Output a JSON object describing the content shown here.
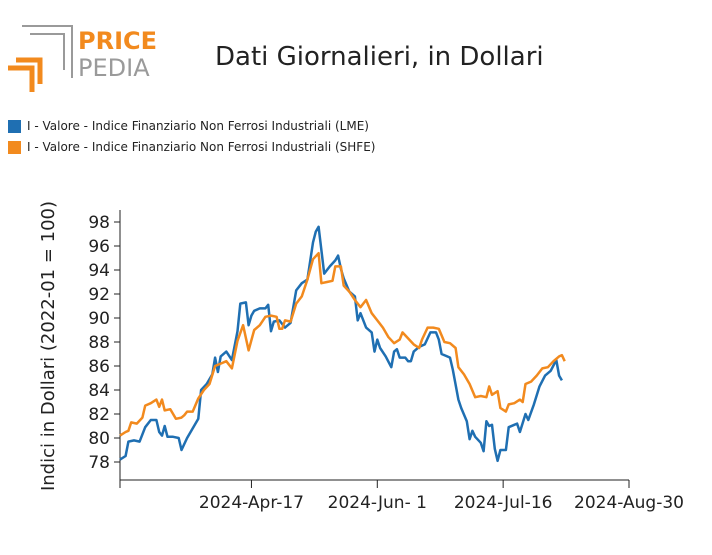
{
  "header": {
    "logo_top": "PRICE",
    "logo_bottom": "PEDIA",
    "title": "Dati Giornalieri, in Dollari"
  },
  "colors": {
    "lme": "#1f6fb2",
    "shfe": "#f28a1e",
    "logo_orange": "#f28a1e",
    "logo_gray": "#9a9a9a"
  },
  "chart_data": {
    "type": "line",
    "ylabel": "Indici in Dollari (2022-01 = 100)",
    "ylim": [
      76.5,
      99
    ],
    "yticks": [
      78,
      80,
      82,
      84,
      86,
      88,
      90,
      92,
      94,
      96,
      98
    ],
    "x_start": "2024-03-01",
    "x_end": "2024-08-30",
    "xticks": [
      "2024-Apr-17",
      "2024-Jun- 1",
      "2024-Jul-16",
      "2024-Aug-30"
    ],
    "xtick_dates": [
      "2024-04-17",
      "2024-06-01",
      "2024-07-16",
      "2024-08-30"
    ],
    "series": [
      {
        "name": "I - Valore - Indice Finanziario Non Ferrosi Industriali (LME)",
        "points": [
          [
            "2024-03-01",
            78.2
          ],
          [
            "2024-03-03",
            78.5
          ],
          [
            "2024-03-04",
            79.7
          ],
          [
            "2024-03-06",
            79.8
          ],
          [
            "2024-03-08",
            79.7
          ],
          [
            "2024-03-10",
            80.9
          ],
          [
            "2024-03-12",
            81.5
          ],
          [
            "2024-03-14",
            81.5
          ],
          [
            "2024-03-15",
            80.5
          ],
          [
            "2024-03-16",
            80.2
          ],
          [
            "2024-03-17",
            81.0
          ],
          [
            "2024-03-18",
            80.1
          ],
          [
            "2024-03-20",
            80.1
          ],
          [
            "2024-03-22",
            80.0
          ],
          [
            "2024-03-23",
            79.0
          ],
          [
            "2024-03-25",
            80.0
          ],
          [
            "2024-03-27",
            80.8
          ],
          [
            "2024-03-29",
            81.6
          ],
          [
            "2024-03-30",
            84.0
          ],
          [
            "2024-04-01",
            84.5
          ],
          [
            "2024-04-03",
            85.3
          ],
          [
            "2024-04-04",
            86.7
          ],
          [
            "2024-04-05",
            85.5
          ],
          [
            "2024-04-06",
            86.8
          ],
          [
            "2024-04-08",
            87.2
          ],
          [
            "2024-04-10",
            86.5
          ],
          [
            "2024-04-12",
            88.9
          ],
          [
            "2024-04-13",
            91.2
          ],
          [
            "2024-04-15",
            91.3
          ],
          [
            "2024-04-16",
            89.4
          ],
          [
            "2024-04-17",
            90.2
          ],
          [
            "2024-04-18",
            90.6
          ],
          [
            "2024-04-20",
            90.8
          ],
          [
            "2024-04-22",
            90.8
          ],
          [
            "2024-04-23",
            91.1
          ],
          [
            "2024-04-24",
            88.9
          ],
          [
            "2024-04-25",
            89.7
          ],
          [
            "2024-04-27",
            89.8
          ],
          [
            "2024-04-29",
            89.2
          ],
          [
            "2024-05-01",
            89.6
          ],
          [
            "2024-05-03",
            92.3
          ],
          [
            "2024-05-05",
            92.9
          ],
          [
            "2024-05-07",
            93.2
          ],
          [
            "2024-05-09",
            96.3
          ],
          [
            "2024-05-10",
            97.2
          ],
          [
            "2024-05-11",
            97.6
          ],
          [
            "2024-05-13",
            93.7
          ],
          [
            "2024-05-15",
            94.3
          ],
          [
            "2024-05-17",
            94.8
          ],
          [
            "2024-05-18",
            95.2
          ],
          [
            "2024-05-19",
            94.1
          ],
          [
            "2024-05-20",
            93.3
          ],
          [
            "2024-05-22",
            92.2
          ],
          [
            "2024-05-24",
            91.8
          ],
          [
            "2024-05-25",
            89.8
          ],
          [
            "2024-05-26",
            90.4
          ],
          [
            "2024-05-28",
            89.2
          ],
          [
            "2024-05-30",
            88.8
          ],
          [
            "2024-05-31",
            87.2
          ],
          [
            "2024-06-01",
            88.2
          ],
          [
            "2024-06-02",
            87.5
          ],
          [
            "2024-06-04",
            86.8
          ],
          [
            "2024-06-06",
            85.9
          ],
          [
            "2024-06-07",
            87.2
          ],
          [
            "2024-06-08",
            87.4
          ],
          [
            "2024-06-09",
            86.7
          ],
          [
            "2024-06-11",
            86.7
          ],
          [
            "2024-06-12",
            86.4
          ],
          [
            "2024-06-13",
            86.4
          ],
          [
            "2024-06-14",
            87.2
          ],
          [
            "2024-06-16",
            87.6
          ],
          [
            "2024-06-18",
            87.8
          ],
          [
            "2024-06-20",
            88.8
          ],
          [
            "2024-06-22",
            88.8
          ],
          [
            "2024-06-23",
            88.2
          ],
          [
            "2024-06-24",
            87.0
          ],
          [
            "2024-06-26",
            86.8
          ],
          [
            "2024-06-27",
            86.7
          ],
          [
            "2024-06-28",
            85.7
          ],
          [
            "2024-06-30",
            83.2
          ],
          [
            "2024-07-01",
            82.5
          ],
          [
            "2024-07-03",
            81.4
          ],
          [
            "2024-07-04",
            79.9
          ],
          [
            "2024-07-05",
            80.6
          ],
          [
            "2024-07-06",
            80.1
          ],
          [
            "2024-07-08",
            79.6
          ],
          [
            "2024-07-09",
            78.9
          ],
          [
            "2024-07-10",
            81.4
          ],
          [
            "2024-07-11",
            81.0
          ],
          [
            "2024-07-12",
            81.1
          ],
          [
            "2024-07-13",
            79.1
          ],
          [
            "2024-07-14",
            78.1
          ],
          [
            "2024-07-15",
            79.0
          ],
          [
            "2024-07-17",
            79.0
          ],
          [
            "2024-07-18",
            80.9
          ],
          [
            "2024-07-20",
            81.1
          ],
          [
            "2024-07-21",
            81.2
          ],
          [
            "2024-07-22",
            80.5
          ],
          [
            "2024-07-24",
            82.0
          ],
          [
            "2024-07-25",
            81.5
          ],
          [
            "2024-07-27",
            82.8
          ],
          [
            "2024-07-29",
            84.3
          ],
          [
            "2024-07-31",
            85.2
          ],
          [
            "2024-08-02",
            85.6
          ],
          [
            "2024-08-04",
            86.5
          ],
          [
            "2024-08-05",
            85.2
          ],
          [
            "2024-08-06",
            84.8
          ]
        ]
      },
      {
        "name": "I - Valore - Indice Finanziario Non Ferrosi Industriali (SHFE)",
        "points": [
          [
            "2024-03-01",
            80.2
          ],
          [
            "2024-03-03",
            80.5
          ],
          [
            "2024-03-04",
            80.6
          ],
          [
            "2024-03-05",
            81.3
          ],
          [
            "2024-03-07",
            81.2
          ],
          [
            "2024-03-09",
            81.7
          ],
          [
            "2024-03-10",
            82.7
          ],
          [
            "2024-03-12",
            82.9
          ],
          [
            "2024-03-14",
            83.2
          ],
          [
            "2024-03-15",
            82.6
          ],
          [
            "2024-03-16",
            83.2
          ],
          [
            "2024-03-17",
            82.3
          ],
          [
            "2024-03-19",
            82.4
          ],
          [
            "2024-03-21",
            81.6
          ],
          [
            "2024-03-23",
            81.7
          ],
          [
            "2024-03-24",
            81.9
          ],
          [
            "2024-03-25",
            82.2
          ],
          [
            "2024-03-27",
            82.2
          ],
          [
            "2024-03-29",
            83.3
          ],
          [
            "2024-03-31",
            84.0
          ],
          [
            "2024-04-02",
            84.5
          ],
          [
            "2024-04-04",
            86.0
          ],
          [
            "2024-04-06",
            86.2
          ],
          [
            "2024-04-08",
            86.4
          ],
          [
            "2024-04-10",
            85.8
          ],
          [
            "2024-04-12",
            88.1
          ],
          [
            "2024-04-14",
            89.4
          ],
          [
            "2024-04-16",
            87.3
          ],
          [
            "2024-04-18",
            89.0
          ],
          [
            "2024-04-20",
            89.4
          ],
          [
            "2024-04-22",
            90.1
          ],
          [
            "2024-04-24",
            90.2
          ],
          [
            "2024-04-26",
            90.1
          ],
          [
            "2024-04-27",
            89.1
          ],
          [
            "2024-04-28",
            89.1
          ],
          [
            "2024-04-29",
            89.8
          ],
          [
            "2024-05-01",
            89.7
          ],
          [
            "2024-05-03",
            91.2
          ],
          [
            "2024-05-05",
            91.8
          ],
          [
            "2024-05-07",
            93.2
          ],
          [
            "2024-05-09",
            94.9
          ],
          [
            "2024-05-11",
            95.4
          ],
          [
            "2024-05-12",
            92.9
          ],
          [
            "2024-05-14",
            93.0
          ],
          [
            "2024-05-16",
            93.1
          ],
          [
            "2024-05-17",
            94.3
          ],
          [
            "2024-05-19",
            94.3
          ],
          [
            "2024-05-20",
            92.7
          ],
          [
            "2024-05-22",
            92.2
          ],
          [
            "2024-05-24",
            91.5
          ],
          [
            "2024-05-26",
            90.9
          ],
          [
            "2024-05-28",
            91.5
          ],
          [
            "2024-05-30",
            90.4
          ],
          [
            "2024-06-01",
            89.8
          ],
          [
            "2024-06-03",
            89.2
          ],
          [
            "2024-06-05",
            88.4
          ],
          [
            "2024-06-07",
            87.9
          ],
          [
            "2024-06-09",
            88.2
          ],
          [
            "2024-06-10",
            88.8
          ],
          [
            "2024-06-12",
            88.3
          ],
          [
            "2024-06-14",
            87.8
          ],
          [
            "2024-06-16",
            87.5
          ],
          [
            "2024-06-17",
            88.2
          ],
          [
            "2024-06-19",
            89.2
          ],
          [
            "2024-06-21",
            89.2
          ],
          [
            "2024-06-23",
            89.1
          ],
          [
            "2024-06-25",
            88.0
          ],
          [
            "2024-06-27",
            87.9
          ],
          [
            "2024-06-29",
            87.5
          ],
          [
            "2024-06-30",
            85.9
          ],
          [
            "2024-07-02",
            85.3
          ],
          [
            "2024-07-04",
            84.5
          ],
          [
            "2024-07-06",
            83.4
          ],
          [
            "2024-07-08",
            83.5
          ],
          [
            "2024-07-10",
            83.4
          ],
          [
            "2024-07-11",
            84.3
          ],
          [
            "2024-07-12",
            83.6
          ],
          [
            "2024-07-14",
            83.9
          ],
          [
            "2024-07-15",
            82.5
          ],
          [
            "2024-07-17",
            82.2
          ],
          [
            "2024-07-18",
            82.8
          ],
          [
            "2024-07-20",
            82.9
          ],
          [
            "2024-07-22",
            83.2
          ],
          [
            "2024-07-23",
            83.0
          ],
          [
            "2024-07-24",
            84.5
          ],
          [
            "2024-07-26",
            84.7
          ],
          [
            "2024-07-28",
            85.2
          ],
          [
            "2024-07-30",
            85.8
          ],
          [
            "2024-08-01",
            85.9
          ],
          [
            "2024-08-03",
            86.4
          ],
          [
            "2024-08-05",
            86.8
          ],
          [
            "2024-08-06",
            86.9
          ],
          [
            "2024-08-07",
            86.4
          ]
        ]
      }
    ]
  }
}
